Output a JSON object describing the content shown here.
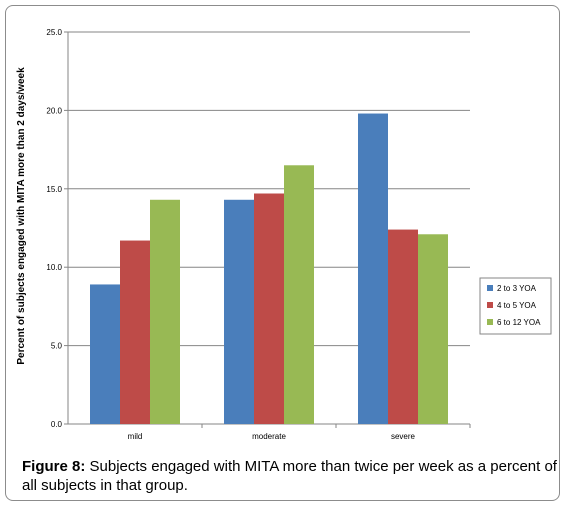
{
  "chart_data": {
    "type": "bar",
    "categories": [
      "mild",
      "moderate",
      "severe"
    ],
    "series": [
      {
        "name": "2 to 3 YOA",
        "values": [
          8.9,
          14.3,
          19.8
        ],
        "color": "#4a7ebb"
      },
      {
        "name": "4 to 5 YOA",
        "values": [
          11.7,
          14.7,
          12.4
        ],
        "color": "#be4b48"
      },
      {
        "name": "6 to 12 YOA",
        "values": [
          14.3,
          16.5,
          12.1
        ],
        "color": "#98b954"
      }
    ],
    "yticks": [
      "0.0",
      "5.0",
      "10.0",
      "15.0",
      "20.0",
      "25.0"
    ],
    "ylim": [
      0,
      25
    ],
    "xlabel": "",
    "ylabel": "Percent of subjects engaged with MITA more than 2 days/week",
    "legend_position": "right",
    "grid": "horizontal"
  },
  "caption": {
    "label": "Figure 8:",
    "text": " Subjects engaged with MITA more than twice per week as a percent of all subjects in that group."
  }
}
